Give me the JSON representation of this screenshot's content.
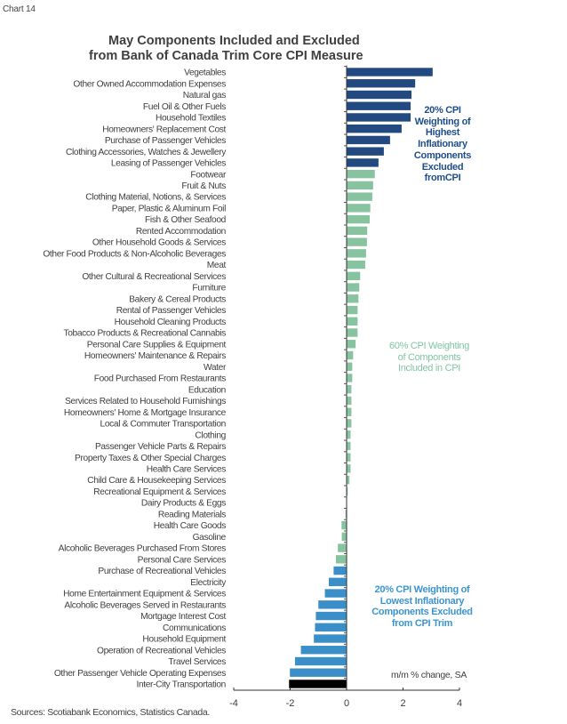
{
  "chart_number": "Chart 14",
  "chart_data": {
    "type": "bar",
    "orientation": "horizontal",
    "title": "May Components Included and Excluded from Bank of Canada Trim Core CPI Measure",
    "title_lines": [
      "May Components Included and Excluded",
      "from Bank of Canada Trim Core CPI Measure"
    ],
    "xlabel": "m/m % change, SA",
    "ylabel": "",
    "xlim": [
      -4,
      4
    ],
    "xticks": [
      -4,
      -2,
      0,
      2,
      4
    ],
    "grid": false,
    "legend": "none",
    "colors": {
      "highest_excluded": "#224a80",
      "included": "#88c3a0",
      "lowest_excluded": "#3b8fc9"
    },
    "categories": [
      "Vegetables",
      "Other Owned Accommodation Expenses",
      "Natural gas",
      "Fuel Oil & Other Fuels",
      "Household Textiles",
      "Homeowners' Replacement Cost",
      "Purchase of Passenger Vehicles",
      "Clothing Accessories, Watches & Jewellery",
      "Leasing of Passenger Vehicles",
      "Footwear",
      "Fruit & Nuts",
      "Clothing Material, Notions, & Services",
      "Paper, Plastic & Aluminum Foil",
      "Fish & Other Seafood",
      "Rented Accommodation",
      "Other Household Goods & Services",
      "Other Food Products & Non-Alcoholic Beverages",
      "Meat",
      "Other Cultural & Recreational Services",
      "Furniture",
      "Bakery & Cereal Products",
      "Rental of Passenger Vehicles",
      "Household Cleaning Products",
      "Tobacco Products & Recreational Cannabis",
      "Personal Care Supplies & Equipment",
      "Homeowners' Maintenance & Repairs",
      "Water",
      "Food Purchased From Restaurants",
      "Education",
      "Services Related to Household Furnishings",
      "Homeowners' Home & Mortgage Insurance",
      "Local & Commuter Transportation",
      "Clothing",
      "Passenger Vehicle Parts & Repairs",
      "Property Taxes & Other Special Charges",
      "Health Care Services",
      "Child Care & Housekeeping Services",
      "Recreational Equipment & Services",
      "Dairy Products & Eggs",
      "Reading Materials",
      "Health Care Goods",
      "Gasoline",
      "Alcoholic Beverages Purchased From Stores",
      "Personal Care Services",
      "Purchase of Recreational Vehicles",
      "Electricity",
      "Home Entertainment Equipment & Services",
      "Alcoholic Beverages Served in Restaurants",
      "Mortgage Interest Cost",
      "Communications",
      "Household Equipment",
      "Operation of Recreational Vehicles",
      "Travel Services",
      "Other Passenger Vehicle Operating Expenses",
      "Inter-City Transportation"
    ],
    "values": [
      3.05,
      2.43,
      2.3,
      2.27,
      2.27,
      1.95,
      1.54,
      1.32,
      1.13,
      1.0,
      0.94,
      0.91,
      0.84,
      0.82,
      0.73,
      0.72,
      0.69,
      0.66,
      0.48,
      0.45,
      0.42,
      0.39,
      0.39,
      0.39,
      0.32,
      0.23,
      0.2,
      0.2,
      0.17,
      0.17,
      0.17,
      0.17,
      0.14,
      0.14,
      0.14,
      0.14,
      0.1,
      0.04,
      0.0,
      -0.04,
      -0.18,
      -0.17,
      -0.31,
      -0.38,
      -0.46,
      -0.63,
      -0.77,
      -1.0,
      -1.09,
      -1.12,
      -1.16,
      -1.62,
      -1.83,
      -2.01,
      -2.04
    ],
    "groups": [
      "highest_excluded",
      "highest_excluded",
      "highest_excluded",
      "highest_excluded",
      "highest_excluded",
      "highest_excluded",
      "highest_excluded",
      "highest_excluded",
      "highest_excluded",
      "included",
      "included",
      "included",
      "included",
      "included",
      "included",
      "included",
      "included",
      "included",
      "included",
      "included",
      "included",
      "included",
      "included",
      "included",
      "included",
      "included",
      "included",
      "included",
      "included",
      "included",
      "included",
      "included",
      "included",
      "included",
      "included",
      "included",
      "included",
      "included",
      "included",
      "included",
      "included",
      "included",
      "included",
      "included",
      "lowest_excluded",
      "lowest_excluded",
      "lowest_excluded",
      "lowest_excluded",
      "lowest_excluded",
      "lowest_excluded",
      "lowest_excluded",
      "lowest_excluded",
      "lowest_excluded",
      "lowest_excluded"
    ],
    "annotations": {
      "highest": "20% CPI Weighting of Highest Inflationary Components Excluded fromCPI",
      "highest_lines": [
        "20% CPI",
        "Weighting of",
        "Highest",
        "Inflationary",
        "Components",
        "Excluded",
        "fromCPI"
      ],
      "included": "60% CPI Weighting of Components Included in CPI",
      "included_lines": [
        "60% CPI Weighting",
        "of Components",
        "Included in CPI"
      ],
      "lowest": "20% CPI Weighting of Lowest Inflationary Components Excluded from CPI Trim",
      "lowest_lines": [
        "20% CPI Weighting of",
        "Lowest Inflationary",
        "Components Excluded",
        "from CPI Trim"
      ]
    }
  },
  "source": "Sources: Scotiabank Economics, Statistics Canada."
}
